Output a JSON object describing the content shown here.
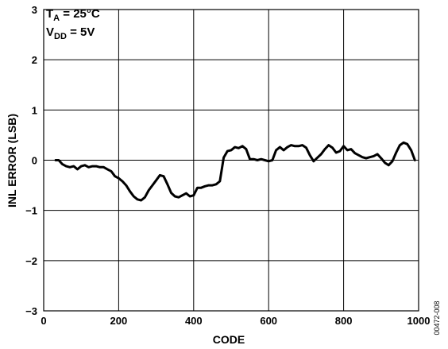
{
  "chart_data": {
    "type": "line",
    "title": "",
    "xlabel": "CODE",
    "ylabel": "INL ERROR (LSB)",
    "xlim": [
      0,
      1000
    ],
    "ylim": [
      -3,
      3
    ],
    "x_ticks": [
      "0",
      "200",
      "400",
      "600",
      "800",
      "1000"
    ],
    "y_ticks": [
      "3",
      "2",
      "1",
      "0",
      "−1",
      "−2",
      "−3"
    ],
    "grid": true,
    "annotation": {
      "line1_main": "T",
      "line1_sub": "A",
      "line1_rest": " = 25°C",
      "line2_main": "V",
      "line2_sub": "DD",
      "line2_rest": " = 5V"
    },
    "figure_id": "00472-008",
    "line_color": "#000000",
    "series": [
      {
        "x": [
          32,
          40,
          50,
          60,
          70,
          80,
          90,
          100,
          110,
          120,
          130,
          140,
          150,
          160,
          170,
          180,
          190,
          200,
          210,
          220,
          230,
          240,
          250,
          260,
          270,
          280,
          290,
          300,
          310,
          320,
          330,
          340,
          350,
          360,
          370,
          380,
          390,
          400,
          410,
          420,
          430,
          440,
          450,
          460,
          470,
          480,
          490,
          500,
          510,
          520,
          530,
          540,
          550,
          560,
          570,
          580,
          590,
          600,
          610,
          620,
          630,
          640,
          650,
          660,
          670,
          680,
          690,
          700,
          710,
          720,
          730,
          740,
          750,
          760,
          770,
          780,
          790,
          800,
          810,
          820,
          830,
          840,
          850,
          860,
          870,
          880,
          890,
          900,
          910,
          920,
          930,
          940,
          950,
          960,
          970,
          980,
          990
        ],
        "y": [
          0.0,
          0.0,
          -0.08,
          -0.12,
          -0.14,
          -0.12,
          -0.18,
          -0.12,
          -0.1,
          -0.14,
          -0.12,
          -0.12,
          -0.14,
          -0.14,
          -0.18,
          -0.22,
          -0.32,
          -0.36,
          -0.42,
          -0.5,
          -0.62,
          -0.72,
          -0.78,
          -0.8,
          -0.74,
          -0.6,
          -0.5,
          -0.4,
          -0.3,
          -0.32,
          -0.48,
          -0.65,
          -0.72,
          -0.74,
          -0.7,
          -0.66,
          -0.72,
          -0.7,
          -0.55,
          -0.55,
          -0.52,
          -0.5,
          -0.5,
          -0.48,
          -0.42,
          0.05,
          0.18,
          0.2,
          0.26,
          0.24,
          0.28,
          0.22,
          0.02,
          0.02,
          0.0,
          0.02,
          0.0,
          -0.02,
          0.0,
          0.2,
          0.26,
          0.2,
          0.26,
          0.3,
          0.28,
          0.28,
          0.3,
          0.25,
          0.1,
          -0.02,
          0.05,
          0.12,
          0.22,
          0.3,
          0.25,
          0.15,
          0.18,
          0.28,
          0.2,
          0.22,
          0.14,
          0.1,
          0.06,
          0.04,
          0.06,
          0.08,
          0.12,
          0.04,
          -0.05,
          -0.1,
          -0.02,
          0.15,
          0.3,
          0.35,
          0.32,
          0.2,
          0.0
        ]
      }
    ]
  }
}
